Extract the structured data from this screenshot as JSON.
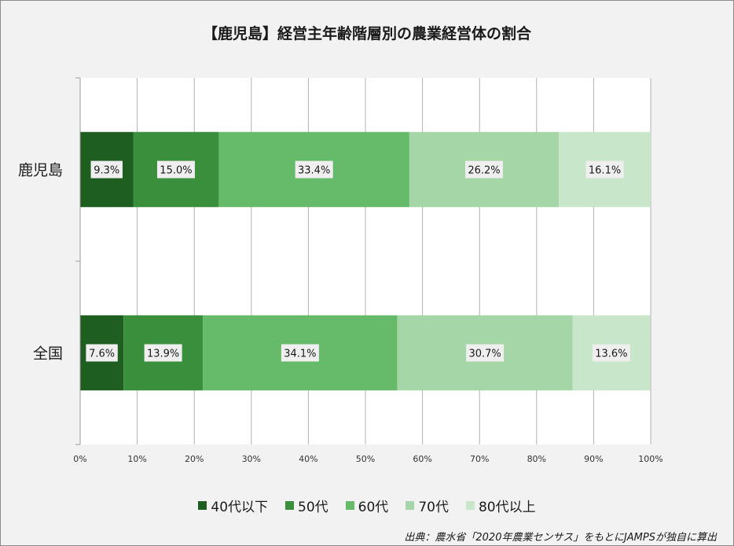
{
  "chart_data": {
    "type": "bar",
    "orientation": "horizontal",
    "stacked": true,
    "title": "【鹿児島】経営主年齢階層別の農業経営体の割合",
    "categories": [
      "鹿児島",
      "全国"
    ],
    "series": [
      {
        "name": "40代以下",
        "color": "#1e5e20",
        "values": [
          9.3,
          7.6
        ],
        "labels": [
          "9.3%",
          "7.6%"
        ]
      },
      {
        "name": "50代",
        "color": "#3a8f3c",
        "values": [
          15.0,
          13.9
        ],
        "labels": [
          "15.0%",
          "13.9%"
        ]
      },
      {
        "name": "60代",
        "color": "#66bb6a",
        "values": [
          33.4,
          34.1
        ],
        "labels": [
          "33.4%",
          "34.1%"
        ]
      },
      {
        "name": "70代",
        "color": "#a5d6a7",
        "values": [
          26.2,
          30.7
        ],
        "labels": [
          "26.2%",
          "30.7%"
        ]
      },
      {
        "name": "80代以上",
        "color": "#c8e6c9",
        "values": [
          16.1,
          13.6
        ],
        "labels": [
          "16.1%",
          "13.6%"
        ]
      }
    ],
    "x_ticks": [
      "0%",
      "10%",
      "20%",
      "30%",
      "40%",
      "50%",
      "60%",
      "70%",
      "80%",
      "90%",
      "100%"
    ],
    "xlim": [
      0,
      100
    ],
    "grid": true,
    "legend_position": "bottom"
  },
  "source_note": "出典：農水省「2020年農業センサス」をもとにJAMPSが独自に算出"
}
